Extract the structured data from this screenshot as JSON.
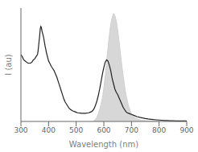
{
  "chart_data": {
    "type": "line",
    "xlabel": "Wavelength (nm)",
    "ylabel": "I (au)",
    "xlim": [
      300,
      900
    ],
    "ylim": [
      0,
      1.05
    ],
    "xticks": [
      300,
      400,
      500,
      600,
      700,
      800,
      900
    ],
    "tick_labels": "x",
    "grid": false,
    "series": [
      {
        "type": "line",
        "color": "#222222",
        "x": [
          300,
          305,
          310,
          315,
          320,
          325,
          330,
          335,
          340,
          345,
          350,
          355,
          360,
          362,
          364,
          366,
          368,
          370,
          372,
          374,
          376,
          378,
          380,
          382,
          384,
          386,
          388,
          390,
          392,
          394,
          396,
          398,
          400,
          402,
          404,
          406,
          408,
          410,
          415,
          420,
          425,
          430,
          435,
          440,
          445,
          450,
          455,
          460,
          465,
          470,
          475,
          480,
          485,
          490,
          495,
          500,
          505,
          510,
          515,
          520,
          525,
          530,
          535,
          540,
          545,
          550,
          555,
          560,
          565,
          570,
          575,
          580,
          585,
          590,
          595,
          600,
          605,
          610,
          615,
          620,
          625,
          630,
          635,
          640,
          645,
          650,
          655,
          660,
          665,
          670,
          675,
          680,
          685,
          690,
          695,
          700,
          710,
          720,
          730,
          740,
          750,
          760,
          770,
          780,
          790,
          800,
          810,
          820,
          830,
          840,
          850,
          860,
          870,
          880,
          890,
          900
        ],
        "values": [
          0.62,
          0.6,
          0.57,
          0.56,
          0.55,
          0.54,
          0.54,
          0.54,
          0.55,
          0.57,
          0.58,
          0.6,
          0.62,
          0.65,
          0.7,
          0.75,
          0.8,
          0.86,
          0.88,
          0.87,
          0.84,
          0.82,
          0.8,
          0.78,
          0.75,
          0.72,
          0.69,
          0.67,
          0.64,
          0.62,
          0.6,
          0.58,
          0.56,
          0.55,
          0.54,
          0.53,
          0.52,
          0.51,
          0.49,
          0.47,
          0.44,
          0.41,
          0.37,
          0.33,
          0.29,
          0.25,
          0.21,
          0.18,
          0.16,
          0.14,
          0.12,
          0.11,
          0.1,
          0.095,
          0.09,
          0.085,
          0.08,
          0.078,
          0.077,
          0.076,
          0.075,
          0.075,
          0.076,
          0.078,
          0.08,
          0.085,
          0.09,
          0.1,
          0.12,
          0.15,
          0.19,
          0.24,
          0.3,
          0.37,
          0.44,
          0.5,
          0.55,
          0.57,
          0.56,
          0.52,
          0.47,
          0.4,
          0.35,
          0.3,
          0.27,
          0.25,
          0.22,
          0.19,
          0.16,
          0.13,
          0.11,
          0.09,
          0.08,
          0.075,
          0.07,
          0.065,
          0.055,
          0.045,
          0.038,
          0.032,
          0.027,
          0.023,
          0.02,
          0.017,
          0.015,
          0.013,
          0.011,
          0.009,
          0.008,
          0.007,
          0.006,
          0.005,
          0.005,
          0.005,
          0.005,
          0.005
        ]
      },
      {
        "type": "area",
        "color": "#d0d0d0",
        "x": [
          560,
          565,
          570,
          575,
          580,
          585,
          590,
          595,
          600,
          605,
          610,
          615,
          620,
          625,
          630,
          635,
          640,
          645,
          650,
          655,
          660,
          665,
          670,
          675,
          680,
          685,
          690,
          695,
          700,
          710,
          720,
          730,
          740,
          750,
          760,
          770,
          780,
          790,
          800
        ],
        "values": [
          0.0,
          0.01,
          0.02,
          0.04,
          0.07,
          0.11,
          0.16,
          0.22,
          0.31,
          0.42,
          0.55,
          0.68,
          0.8,
          0.9,
          0.96,
          1.0,
          0.98,
          0.93,
          0.85,
          0.75,
          0.63,
          0.52,
          0.42,
          0.33,
          0.25,
          0.19,
          0.14,
          0.1,
          0.07,
          0.04,
          0.025,
          0.015,
          0.01,
          0.007,
          0.005,
          0.004,
          0.003,
          0.003,
          0.002
        ]
      }
    ]
  }
}
